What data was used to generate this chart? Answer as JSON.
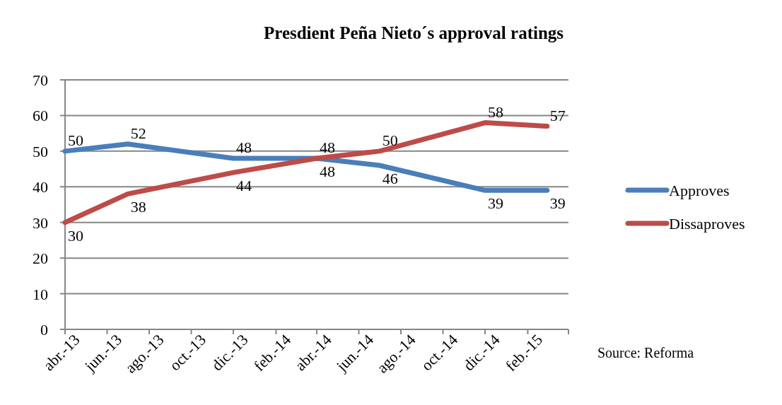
{
  "chart_data": {
    "type": "line",
    "title": "Presdient Peña Nieto´s approval ratings",
    "x": [
      "2013-04",
      "2013-07",
      "2013-12",
      "2014-04",
      "2014-07",
      "2014-12",
      "2015-03"
    ],
    "xlim": [
      "2013-04",
      "2015-04"
    ],
    "xticks": [
      {
        "value": "2013-04",
        "label": "abr.-13"
      },
      {
        "value": "2013-06",
        "label": "jun.-13"
      },
      {
        "value": "2013-08",
        "label": "ago.-13"
      },
      {
        "value": "2013-10",
        "label": "oct.-13"
      },
      {
        "value": "2013-12",
        "label": "dic.-13"
      },
      {
        "value": "2014-02",
        "label": "feb.-14"
      },
      {
        "value": "2014-04",
        "label": "abr.-14"
      },
      {
        "value": "2014-06",
        "label": "jun.-14"
      },
      {
        "value": "2014-08",
        "label": "ago.-14"
      },
      {
        "value": "2014-10",
        "label": "oct.-14"
      },
      {
        "value": "2014-12",
        "label": "dic.-14"
      },
      {
        "value": "2015-02",
        "label": "feb.-15"
      },
      {
        "value": "2015-04",
        "label": null
      }
    ],
    "ylim": [
      0,
      70
    ],
    "yticks": [
      0,
      10,
      20,
      30,
      40,
      50,
      60,
      70
    ],
    "grid": "y",
    "legend": "right",
    "data_labels": true,
    "marker": "none",
    "line_style": "solid",
    "series": [
      {
        "name": "Approves",
        "color": "#4a7ebb",
        "values": [
          50,
          52,
          48,
          48,
          46,
          39,
          39
        ]
      },
      {
        "name": "Dissaproves",
        "color": "#be4b48",
        "values": [
          30,
          38,
          44,
          48,
          50,
          58,
          57
        ]
      }
    ],
    "annotations": [
      "Source: Reforma"
    ]
  }
}
